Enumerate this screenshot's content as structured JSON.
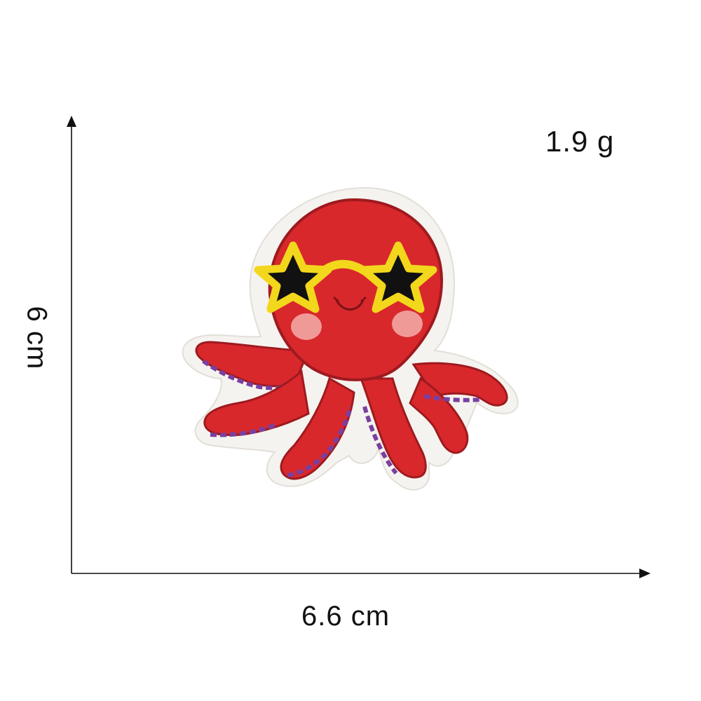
{
  "product": {
    "weight_label": "1.9 g",
    "width_label": "6.6 cm",
    "height_label": "6 cm",
    "description_icon": "octopus-patch-illustration"
  },
  "colors": {
    "patch_red": "#d8282c",
    "patch_dark_red": "#9e1a1f",
    "border_white": "#f6f4f1",
    "star_yellow": "#f2d71c",
    "star_black": "#111111",
    "cheek_pink": "#f09a98",
    "suction_purple": "#7a3fa0",
    "axis_black": "#111111"
  }
}
